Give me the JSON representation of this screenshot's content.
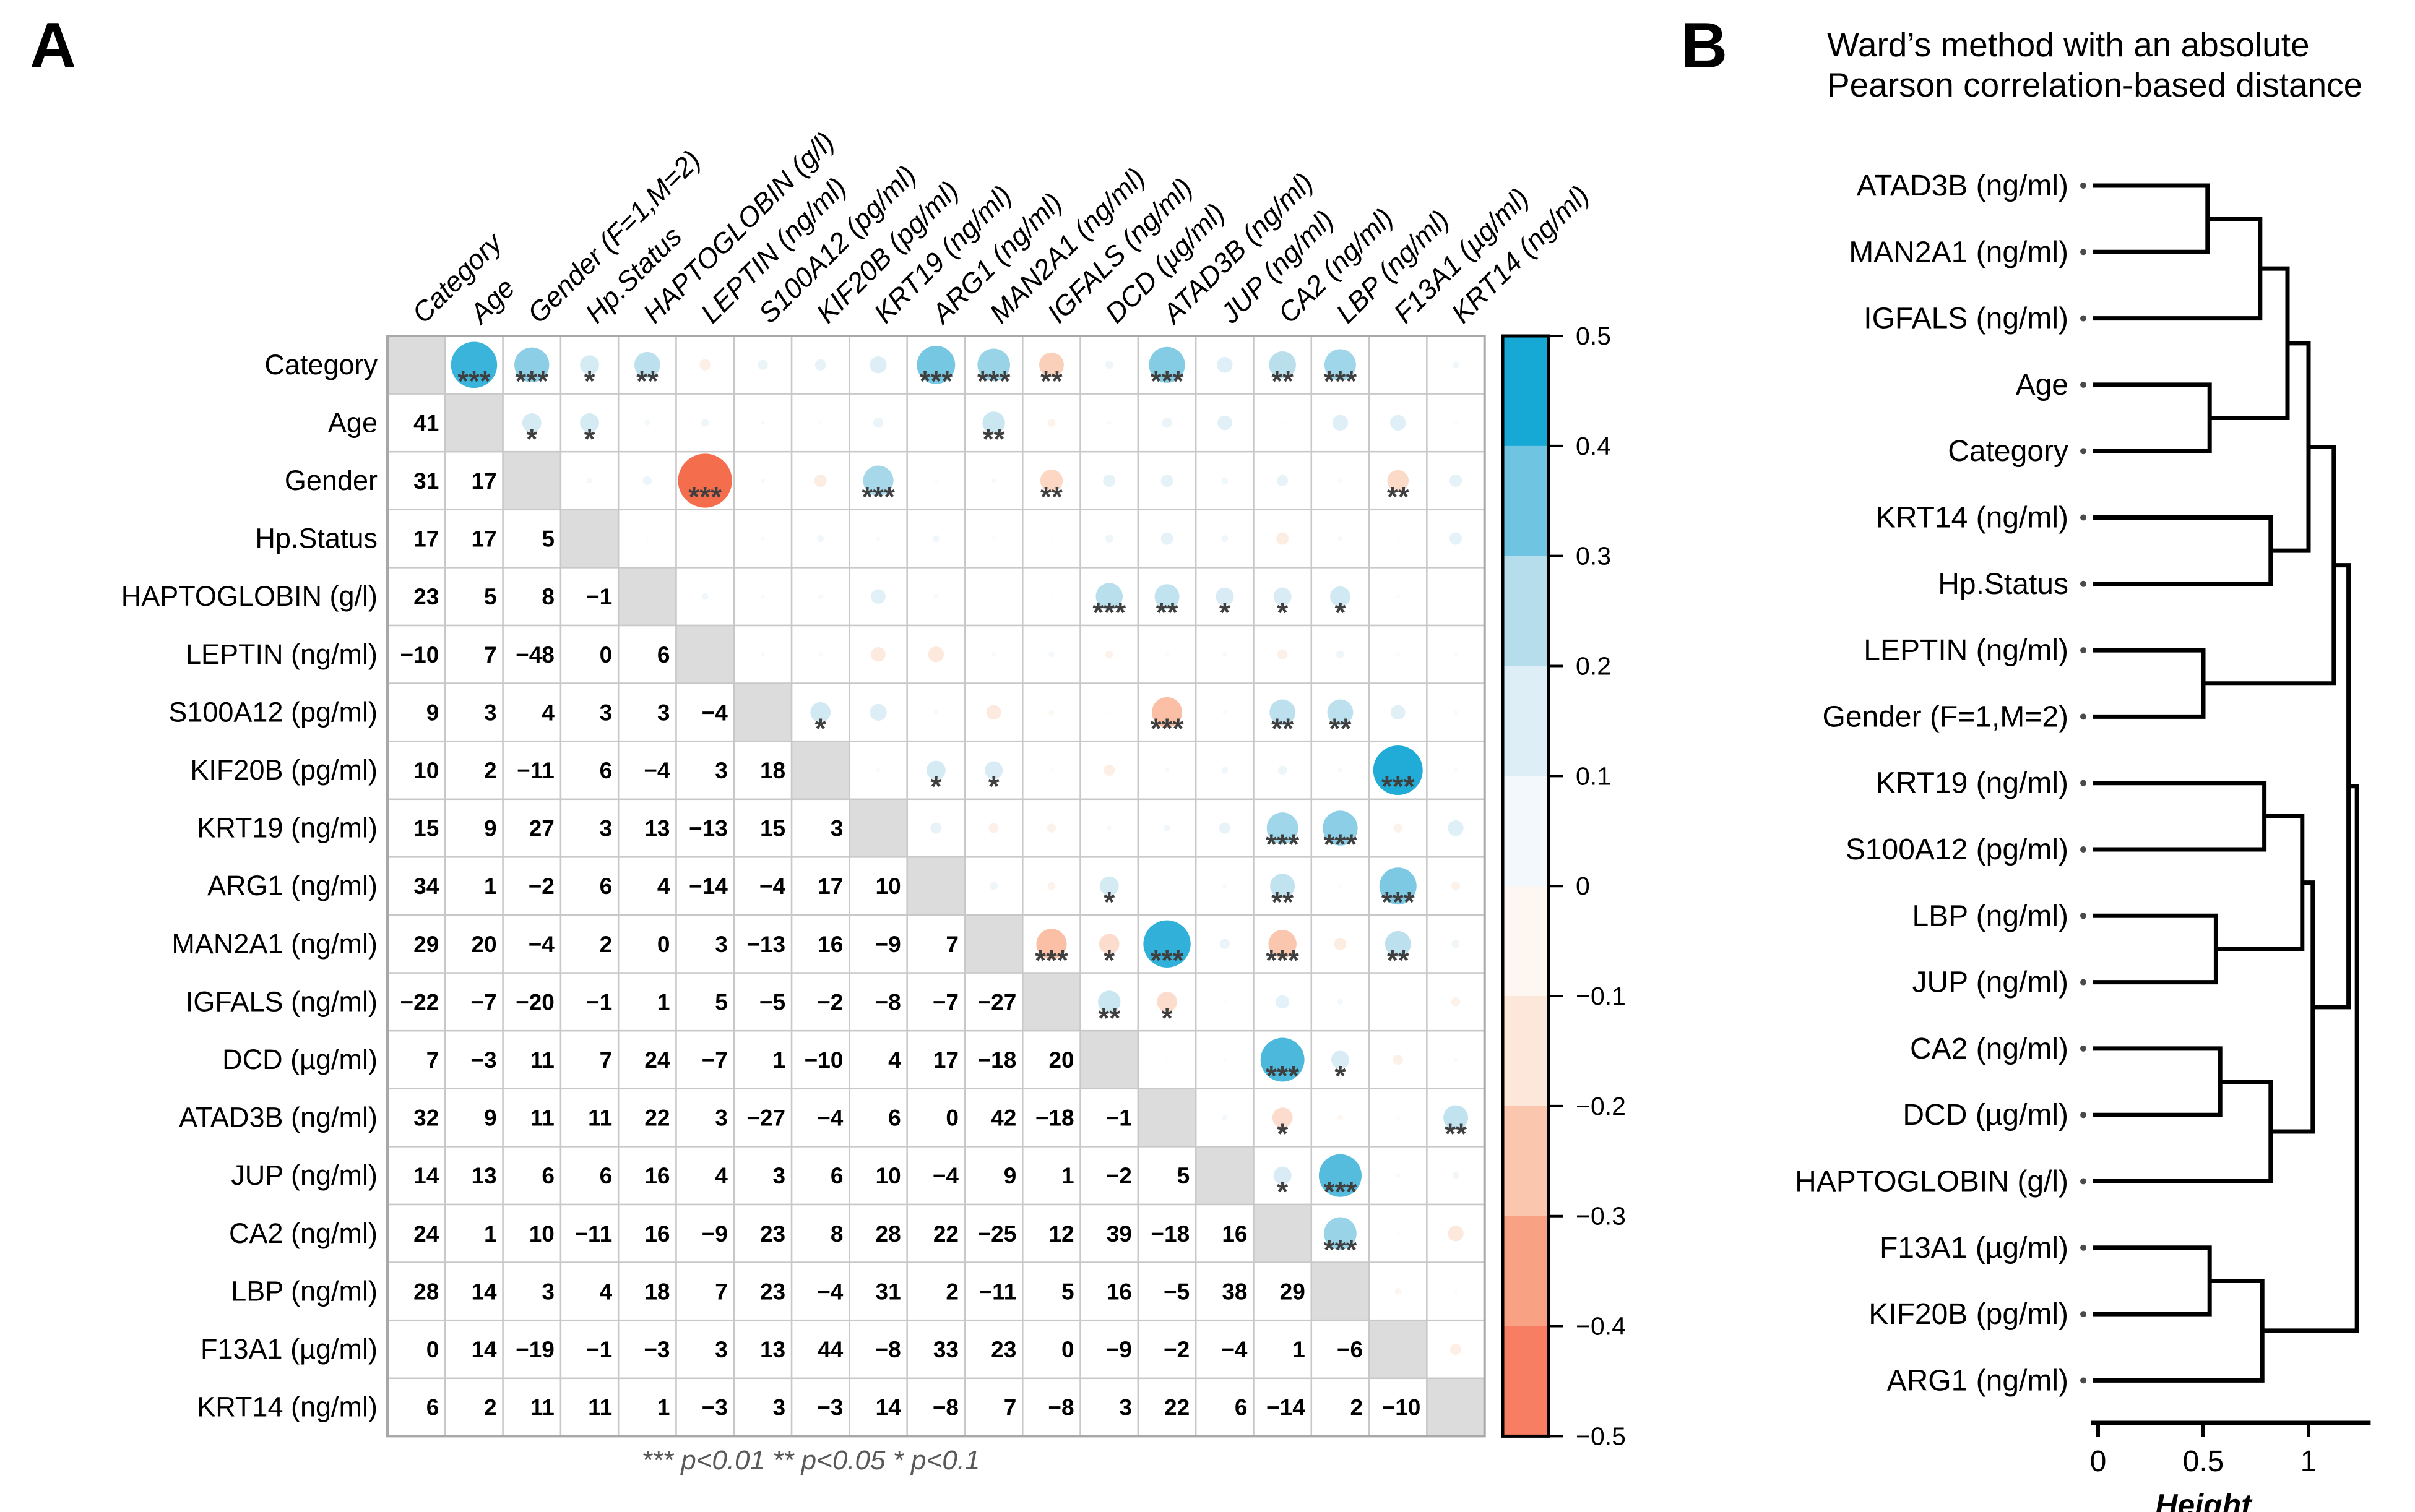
{
  "figure": {
    "panel_a_label": "A",
    "panel_b_label": "B"
  },
  "chart_data": [
    {
      "type": "heatmap",
      "subtype": "correlation-matrix-corrplot",
      "panel": "A",
      "variables": [
        "Category",
        "Age",
        "Gender (F=1,M=2)",
        "Hp.Status",
        "HAPTOGLOBIN (g/l)",
        "LEPTIN (ng/ml)",
        "S100A12 (pg/ml)",
        "KIF20B (pg/ml)",
        "KRT19 (ng/ml)",
        "ARG1 (ng/ml)",
        "MAN2A1 (ng/ml)",
        "IGFALS (ng/ml)",
        "DCD (µg/ml)",
        "ATAD3B (ng/ml)",
        "JUP (ng/ml)",
        "CA2 (ng/ml)",
        "LBP (ng/ml)",
        "F13A1 (µg/ml)",
        "KRT14 (ng/ml)"
      ],
      "row_labels": [
        "Category",
        "Age",
        "Gender",
        "Hp.Status",
        "HAPTOGLOBIN (g/l)",
        "LEPTIN (ng/ml)",
        "S100A12 (pg/ml)",
        "KIF20B (pg/ml)",
        "KRT19 (ng/ml)",
        "ARG1 (ng/ml)",
        "MAN2A1 (ng/ml)",
        "IGFALS (ng/ml)",
        "DCD (µg/ml)",
        "ATAD3B (ng/ml)",
        "JUP (ng/ml)",
        "CA2 (ng/ml)",
        "LBP (ng/ml)",
        "F13A1 (µg/ml)",
        "KRT14 (ng/ml)"
      ],
      "lower_triangle_values_x100": [
        [],
        [
          41
        ],
        [
          31,
          17
        ],
        [
          17,
          17,
          5
        ],
        [
          23,
          5,
          8,
          -1
        ],
        [
          -10,
          7,
          -48,
          0,
          6
        ],
        [
          9,
          3,
          4,
          3,
          3,
          -4
        ],
        [
          10,
          2,
          -11,
          6,
          -4,
          3,
          18
        ],
        [
          15,
          9,
          27,
          3,
          13,
          -13,
          15,
          3
        ],
        [
          34,
          1,
          -2,
          6,
          4,
          -14,
          -4,
          17,
          10
        ],
        [
          29,
          20,
          -4,
          2,
          0,
          3,
          -13,
          16,
          -9,
          7
        ],
        [
          -22,
          -7,
          -20,
          -1,
          1,
          5,
          -5,
          -2,
          -8,
          -7,
          -27
        ],
        [
          7,
          -3,
          11,
          7,
          24,
          -7,
          1,
          -10,
          4,
          17,
          -18,
          20
        ],
        [
          32,
          9,
          11,
          11,
          22,
          3,
          -27,
          -4,
          6,
          0,
          42,
          -18,
          -1
        ],
        [
          14,
          13,
          6,
          6,
          16,
          4,
          3,
          6,
          10,
          -4,
          9,
          1,
          -2,
          5
        ],
        [
          24,
          1,
          10,
          -11,
          16,
          -9,
          23,
          8,
          28,
          22,
          -25,
          12,
          39,
          -18,
          16
        ],
        [
          28,
          14,
          3,
          4,
          18,
          7,
          23,
          -4,
          31,
          2,
          -11,
          5,
          16,
          -5,
          38,
          29
        ],
        [
          0,
          14,
          -19,
          -1,
          -3,
          3,
          13,
          44,
          -8,
          33,
          23,
          0,
          -9,
          -2,
          -4,
          1,
          -6
        ],
        [
          6,
          2,
          11,
          11,
          1,
          -3,
          3,
          -3,
          14,
          -8,
          7,
          -8,
          3,
          22,
          6,
          -14,
          2,
          -10
        ]
      ],
      "significance": {
        "1-2": "***",
        "1-3": "***",
        "1-4": "*",
        "1-5": "**",
        "1-10": "***",
        "1-11": "***",
        "1-12": "**",
        "1-14": "***",
        "1-16": "**",
        "1-17": "***",
        "2-3": "*",
        "2-4": "*",
        "2-11": "**",
        "3-6": "***",
        "3-9": "***",
        "3-12": "**",
        "3-18": "**",
        "5-13": "***",
        "5-14": "**",
        "5-15": "*",
        "5-16": "*",
        "5-17": "*",
        "7-8": "*",
        "7-14": "***",
        "7-16": "**",
        "7-17": "**",
        "8-10": "*",
        "8-11": "*",
        "8-18": "***",
        "9-16": "***",
        "9-17": "***",
        "10-13": "*",
        "10-16": "**",
        "10-18": "***",
        "11-12": "***",
        "11-13": "*",
        "11-14": "***",
        "11-16": "***",
        "11-18": "**",
        "12-13": "**",
        "12-14": "*",
        "13-16": "***",
        "13-17": "*",
        "14-16": "*",
        "14-19": "**",
        "15-16": "*",
        "15-17": "***",
        "16-17": "***"
      },
      "scale": {
        "min": -0.5,
        "max": 0.5,
        "ticks": [
          "0.5",
          "0.4",
          "0.3",
          "0.2",
          "0.1",
          "0",
          "−0.1",
          "−0.2",
          "−0.3",
          "−0.4",
          "−0.5"
        ],
        "legend_blocks": [
          "#17a9d5",
          "#6fc4e1",
          "#b5ddec",
          "#ddeef6",
          "#f2f8fb",
          "#fdf6f1",
          "#fce7da",
          "#fbc6ae",
          "#f9a183",
          "#f87e63"
        ]
      },
      "colors": {
        "ramp_positive": [
          [
            0,
            "#ffffff"
          ],
          [
            0.05,
            "#f2f8fb"
          ],
          [
            0.15,
            "#ddeef6"
          ],
          [
            0.25,
            "#b5ddec"
          ],
          [
            0.35,
            "#6fc4e1"
          ],
          [
            0.45,
            "#17a9d5"
          ],
          [
            0.5,
            "#0da0cf"
          ]
        ],
        "ramp_negative": [
          [
            0,
            "#ffffff"
          ],
          [
            0.05,
            "#fdf6f1"
          ],
          [
            0.15,
            "#fce7da"
          ],
          [
            0.25,
            "#fbc6ae"
          ],
          [
            0.35,
            "#f9a183"
          ],
          [
            0.45,
            "#f87e63"
          ],
          [
            0.5,
            "#f2613e"
          ]
        ],
        "diagonal": "#dcdcdc",
        "grid": "#c8c8c8",
        "outer_border": "#a8a8a8",
        "number_text": "#000000",
        "star": "#3f3f3f",
        "legend_border": "#000000"
      },
      "caption": "*** p<0.01  ** p<0.05  * p<0.1"
    },
    {
      "type": "dendrogram",
      "panel": "B",
      "title_lines": [
        "Ward’s method with an absolute",
        "Pearson correlation-based distance"
      ],
      "orientation": "horizontal-leaves-left",
      "axis": {
        "label": "Height",
        "ticks": [
          "0",
          "0.5",
          "1"
        ],
        "tick_values": [
          0,
          0.5,
          1
        ]
      },
      "leaves_top_to_bottom": [
        "ATAD3B (ng/ml)",
        "MAN2A1 (ng/ml)",
        "IGFALS (ng/ml)",
        "Age",
        "Category",
        "KRT14 (ng/ml)",
        "Hp.Status",
        "LEPTIN (ng/ml)",
        "Gender (F=1,M=2)",
        "KRT19 (ng/ml)",
        "S100A12 (pg/ml)",
        "LBP (ng/ml)",
        "JUP (ng/ml)",
        "CA2 (ng/ml)",
        "DCD (µg/ml)",
        "HAPTOGLOBIN (g/l)",
        "F13A1 (µg/ml)",
        "KIF20B (pg/ml)",
        "ARG1 (ng/ml)"
      ],
      "tree": {
        "h": 1.23,
        "children": [
          {
            "h": 1.19,
            "children": [
              {
                "h": 1.12,
                "children": [
                  {
                    "h": 1.0,
                    "children": [
                      {
                        "h": 0.9,
                        "children": [
                          {
                            "h": 0.77,
                            "children": [
                              {
                                "h": 0.52,
                                "children": [
                                  {
                                    "leaf": "ATAD3B (ng/ml)"
                                  },
                                  {
                                    "leaf": "MAN2A1 (ng/ml)"
                                  }
                                ]
                              },
                              {
                                "leaf": "IGFALS (ng/ml)"
                              }
                            ]
                          },
                          {
                            "h": 0.53,
                            "children": [
                              {
                                "leaf": "Age"
                              },
                              {
                                "leaf": "Category"
                              }
                            ]
                          }
                        ]
                      },
                      {
                        "h": 0.82,
                        "children": [
                          {
                            "leaf": "KRT14 (ng/ml)"
                          },
                          {
                            "leaf": "Hp.Status"
                          }
                        ]
                      }
                    ]
                  },
                  {
                    "h": 0.5,
                    "children": [
                      {
                        "leaf": "LEPTIN (ng/ml)"
                      },
                      {
                        "leaf": "Gender (F=1,M=2)"
                      }
                    ]
                  }
                ]
              },
              {
                "h": 1.02,
                "children": [
                  {
                    "h": 0.97,
                    "children": [
                      {
                        "h": 0.79,
                        "children": [
                          {
                            "leaf": "KRT19 (ng/ml)"
                          },
                          {
                            "leaf": "S100A12 (pg/ml)"
                          }
                        ]
                      },
                      {
                        "h": 0.56,
                        "children": [
                          {
                            "leaf": "LBP (ng/ml)"
                          },
                          {
                            "leaf": "JUP (ng/ml)"
                          }
                        ]
                      }
                    ]
                  },
                  {
                    "h": 0.82,
                    "children": [
                      {
                        "h": 0.58,
                        "children": [
                          {
                            "leaf": "CA2 (ng/ml)"
                          },
                          {
                            "leaf": "DCD (µg/ml)"
                          }
                        ]
                      },
                      {
                        "leaf": "HAPTOGLOBIN (g/l)"
                      }
                    ]
                  }
                ]
              }
            ]
          },
          {
            "h": 0.78,
            "children": [
              {
                "h": 0.53,
                "children": [
                  {
                    "leaf": "F13A1 (µg/ml)"
                  },
                  {
                    "leaf": "KIF20B (pg/ml)"
                  }
                ]
              },
              {
                "leaf": "ARG1 (ng/ml)"
              }
            ]
          }
        ]
      }
    }
  ]
}
